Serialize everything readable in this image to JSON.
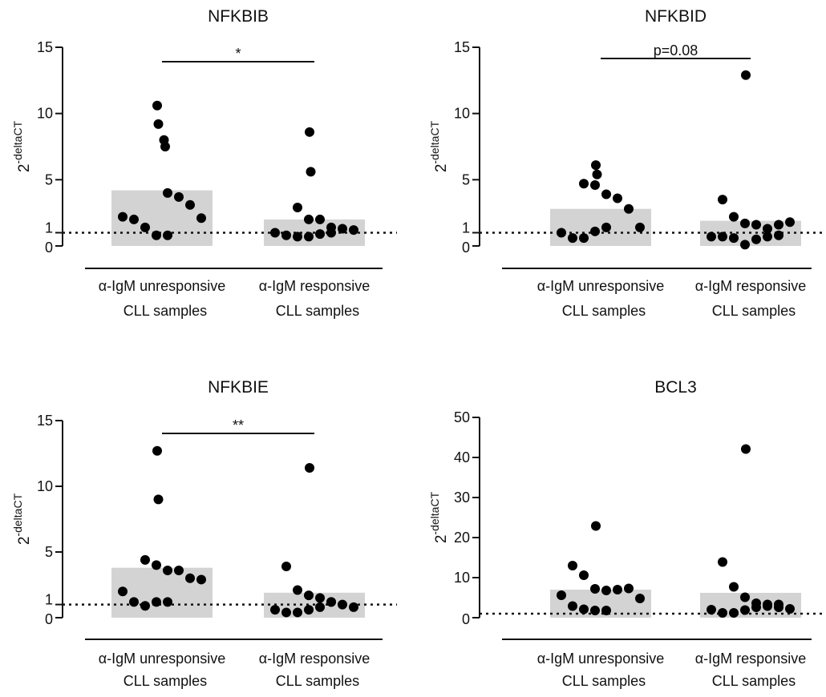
{
  "chart_data": [
    {
      "type": "scatter",
      "title": "NFKBIB",
      "ylabel": "2",
      "ylabel_superscript": "-deltaCT",
      "categories": [
        "α-IgM unresponsive CLL samples",
        "α-IgM responsive CLL samples"
      ],
      "category_lines": [
        [
          "α-IgM unresponsive",
          "CLL samples"
        ],
        [
          "α-IgM responsive",
          "CLL samples"
        ]
      ],
      "yticks": [
        0,
        1,
        5,
        10,
        15
      ],
      "ylim": [
        0,
        15
      ],
      "reference_line": 1,
      "bar_values": [
        4.2,
        2.0
      ],
      "significance": {
        "label": "*",
        "between": [
          0,
          1
        ]
      },
      "series": [
        {
          "category": 0,
          "values": [
            10.6,
            9.2,
            8.0,
            7.5,
            4.0,
            3.7,
            3.1,
            2.1,
            2.2,
            2.0,
            1.4,
            0.8,
            0.8
          ]
        },
        {
          "category": 1,
          "values": [
            8.6,
            5.6,
            2.9,
            2.0,
            2.0,
            1.4,
            1.3,
            1.2,
            1.0,
            0.8,
            0.7,
            0.7,
            0.9,
            1.0
          ]
        }
      ]
    },
    {
      "type": "scatter",
      "title": "NFKBID",
      "ylabel": "2",
      "ylabel_superscript": "-deltaCT",
      "categories": [
        "α-IgM unresponsive CLL samples",
        "α-IgM responsive CLL samples"
      ],
      "category_lines": [
        [
          "α-IgM unresponsive",
          "CLL samples"
        ],
        [
          "α-IgM responsive",
          "CLL samples"
        ]
      ],
      "yticks": [
        0,
        1,
        5,
        10,
        15
      ],
      "ylim": [
        0,
        15
      ],
      "reference_line": 1,
      "bar_values": [
        2.8,
        1.9
      ],
      "significance": {
        "label": "p=0.08",
        "between": [
          0,
          1
        ]
      },
      "series": [
        {
          "category": 0,
          "values": [
            6.1,
            5.4,
            4.7,
            4.6,
            3.9,
            3.6,
            2.8,
            1.4,
            1.0,
            0.6,
            0.6,
            1.1,
            1.4
          ]
        },
        {
          "category": 1,
          "values": [
            12.9,
            3.5,
            2.2,
            1.7,
            1.6,
            1.3,
            1.6,
            1.8,
            0.7,
            0.7,
            0.6,
            0.1,
            0.5,
            0.7,
            0.8
          ]
        }
      ]
    },
    {
      "type": "scatter",
      "title": "NFKBIE",
      "ylabel": "2",
      "ylabel_superscript": "-deltaCT",
      "categories": [
        "α-IgM unresponsive CLL samples",
        "α-IgM responsive CLL samples"
      ],
      "category_lines": [
        [
          "α-IgM unresponsive",
          "CLL samples"
        ],
        [
          "α-IgM responsive",
          "CLL samples"
        ]
      ],
      "yticks": [
        0,
        1,
        5,
        10,
        15
      ],
      "ylim": [
        0,
        15
      ],
      "reference_line": 1,
      "bar_values": [
        3.8,
        1.9
      ],
      "significance": {
        "label": "**",
        "between": [
          0,
          1
        ]
      },
      "series": [
        {
          "category": 0,
          "values": [
            12.7,
            9.0,
            4.4,
            4.0,
            3.6,
            3.6,
            3.0,
            2.9,
            2.0,
            1.2,
            0.9,
            1.2,
            1.2
          ]
        },
        {
          "category": 1,
          "values": [
            11.4,
            3.9,
            2.1,
            1.7,
            1.5,
            1.2,
            1.0,
            0.8,
            0.6,
            0.4,
            0.4,
            0.6,
            0.8,
            1.2
          ]
        }
      ]
    },
    {
      "type": "scatter",
      "title": "BCL3",
      "ylabel": "2",
      "ylabel_superscript": "-deltaCT",
      "categories": [
        "α-IgM unresponsive CLL samples",
        "α-IgM responsive CLL samples"
      ],
      "category_lines": [
        [
          "α-IgM unresponsive",
          "CLL samples"
        ],
        [
          "α-IgM responsive",
          "CLL samples"
        ]
      ],
      "yticks": [
        0,
        10,
        20,
        30,
        40,
        50
      ],
      "ylim": [
        0,
        50
      ],
      "reference_line": 1,
      "bar_values": [
        7.0,
        6.2
      ],
      "significance": null,
      "series": [
        {
          "category": 0,
          "values": [
            22.9,
            13.0,
            10.6,
            7.2,
            6.8,
            7.0,
            7.3,
            4.8,
            5.6,
            2.9,
            2.1,
            1.8,
            1.8
          ]
        },
        {
          "category": 1,
          "values": [
            42.1,
            13.9,
            7.7,
            5.1,
            3.6,
            3.3,
            2.6,
            2.2,
            2.0,
            1.2,
            1.2,
            1.9,
            2.6,
            2.9,
            3.3
          ]
        }
      ]
    }
  ]
}
